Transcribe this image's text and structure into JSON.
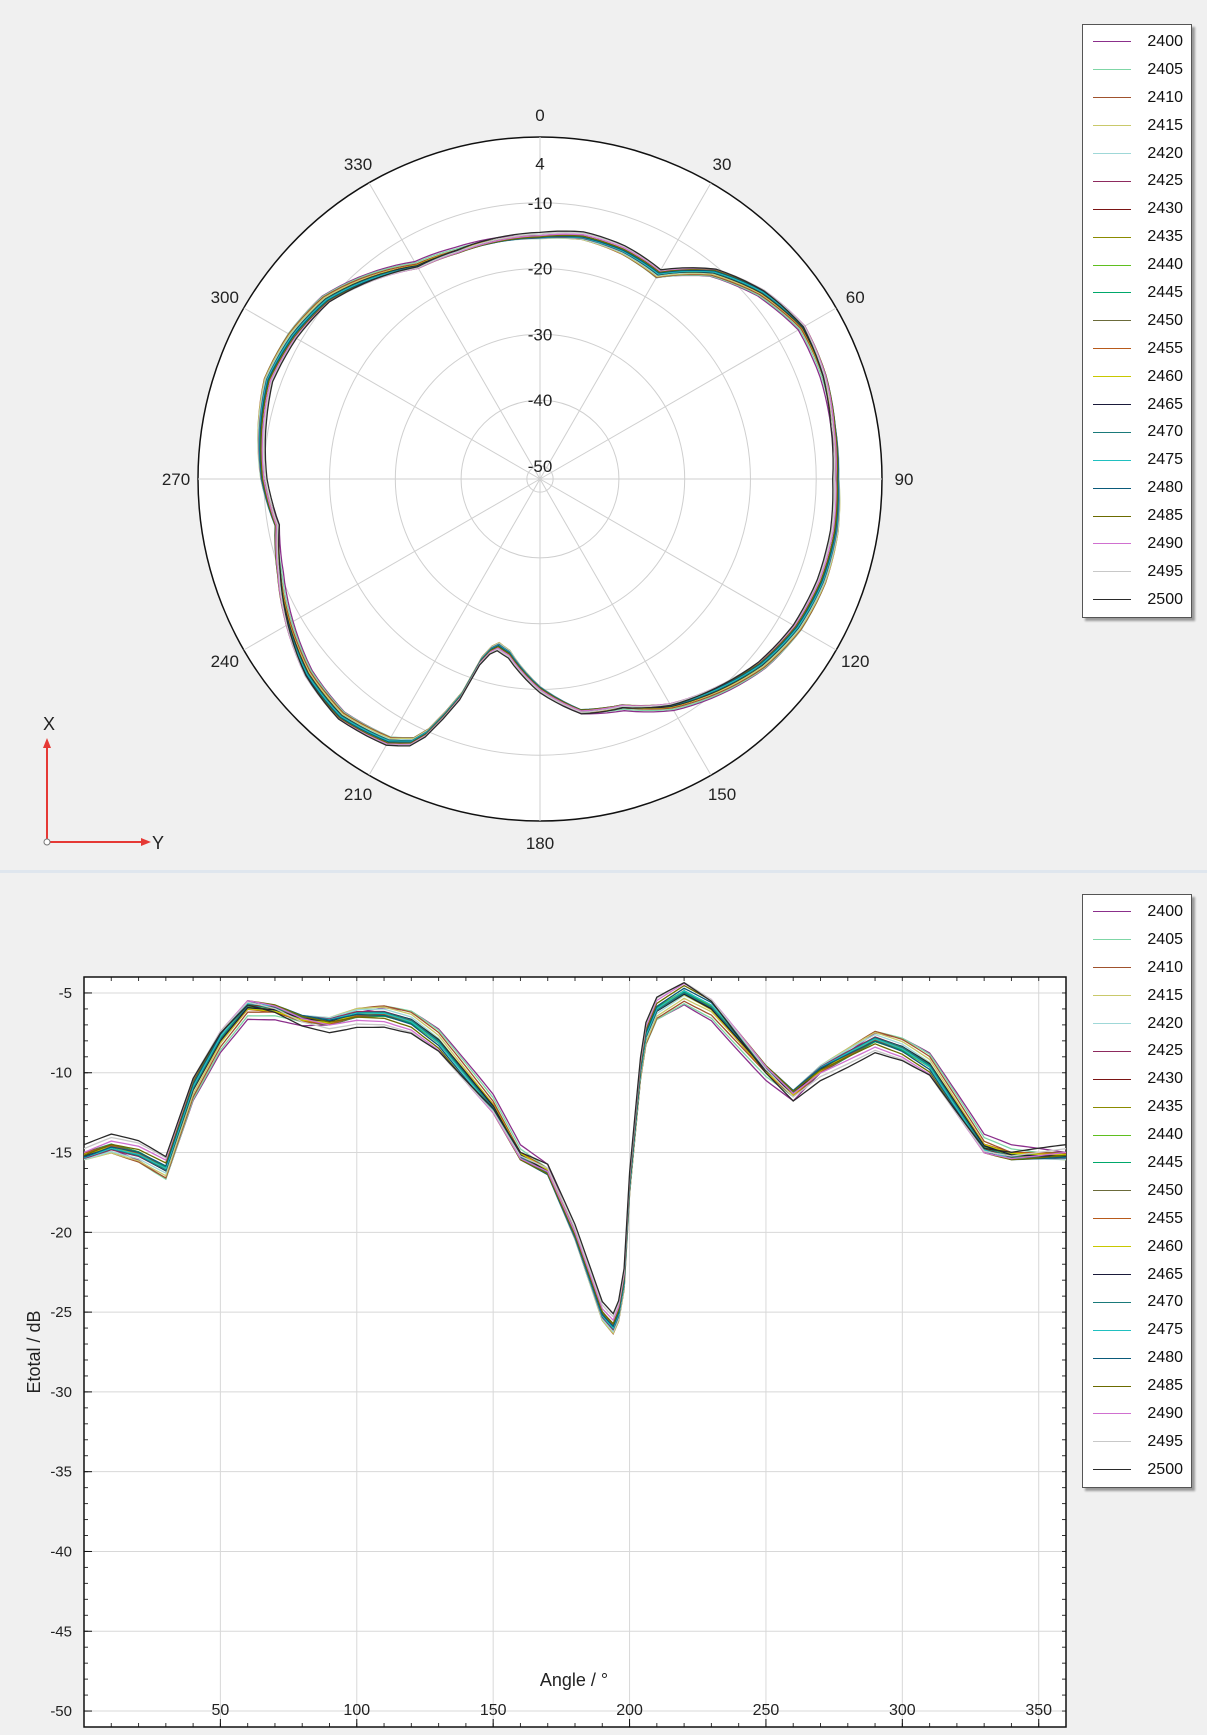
{
  "colors": {
    "2400": "#8b2f8b",
    "2405": "#7fd6a6",
    "2410": "#a0522d",
    "2415": "#c9c96a",
    "2420": "#9fd8d8",
    "2425": "#8e2a5e",
    "2430": "#7a1414",
    "2435": "#8b8b00",
    "2440": "#5fbf1f",
    "2445": "#00a86b",
    "2450": "#6b6b3a",
    "2455": "#b85a1a",
    "2460": "#c8c800",
    "2465": "#1a1a3a",
    "2470": "#1a7a7a",
    "2475": "#20c0c0",
    "2480": "#0a5a7a",
    "2485": "#6b6b00",
    "2490": "#d070d0",
    "2495": "#c8c8c8",
    "2500": "#2a2a2a"
  },
  "legend": {
    "items": [
      "2400",
      "2405",
      "2410",
      "2415",
      "2420",
      "2425",
      "2430",
      "2435",
      "2440",
      "2445",
      "2450",
      "2455",
      "2460",
      "2465",
      "2470",
      "2475",
      "2480",
      "2485",
      "2490",
      "2495",
      "2500"
    ]
  },
  "axes_indicator": {
    "x_label": "X",
    "y_label": "Y"
  },
  "chart_data": [
    {
      "type": "polar-line",
      "angle_tick_labels": [
        "0",
        "30",
        "60",
        "90",
        "120",
        "150",
        "180",
        "210",
        "240",
        "270",
        "300",
        "330"
      ],
      "radial_tick_labels": [
        "-50",
        "-40",
        "-30",
        "-20",
        "-10",
        "4"
      ],
      "radial_range": [
        -52,
        0
      ],
      "series_names": [
        "2400",
        "2405",
        "2410",
        "2415",
        "2420",
        "2425",
        "2430",
        "2435",
        "2440",
        "2445",
        "2450",
        "2455",
        "2460",
        "2465",
        "2470",
        "2475",
        "2480",
        "2485",
        "2490",
        "2495",
        "2500"
      ],
      "base_profile": {
        "angle": [
          0,
          10,
          20,
          30,
          40,
          50,
          60,
          70,
          80,
          90,
          100,
          110,
          120,
          130,
          140,
          150,
          160,
          170,
          180,
          190,
          195,
          198,
          200,
          205,
          210,
          220,
          230,
          240,
          250,
          260,
          270,
          280,
          290,
          300,
          310,
          320,
          330,
          340,
          350,
          360
        ],
        "value": [
          -15,
          -14.5,
          -15,
          -16,
          -11,
          -8,
          -6,
          -6.2,
          -6.8,
          -7,
          -6.5,
          -6.4,
          -6.8,
          -8,
          -10,
          -12,
          -15,
          -16,
          -20,
          -25,
          -26,
          -23,
          -17,
          -8,
          -6,
          -5,
          -6,
          -8,
          -10,
          -11.5,
          -10,
          -9,
          -8,
          -8.5,
          -9.5,
          -12,
          -14.5,
          -15,
          -15,
          -15
        ]
      },
      "spread_db": 1.5,
      "legend_position": "top-right"
    },
    {
      "type": "line",
      "xlabel": "Angle / °",
      "ylabel": "Etotal / dB",
      "xlim": [
        0,
        360
      ],
      "ylim": [
        -51,
        -4
      ],
      "x_ticks": [
        50,
        100,
        150,
        200,
        250,
        300,
        350
      ],
      "y_ticks": [
        -5,
        -10,
        -15,
        -20,
        -25,
        -30,
        -35,
        -40,
        -45,
        -50
      ],
      "grid": true,
      "series_names": [
        "2400",
        "2405",
        "2410",
        "2415",
        "2420",
        "2425",
        "2430",
        "2435",
        "2440",
        "2445",
        "2450",
        "2455",
        "2460",
        "2465",
        "2470",
        "2475",
        "2480",
        "2485",
        "2490",
        "2495",
        "2500"
      ],
      "base_profile": {
        "x": [
          0,
          10,
          20,
          30,
          40,
          50,
          60,
          70,
          80,
          90,
          100,
          110,
          120,
          130,
          140,
          150,
          160,
          170,
          180,
          190,
          195,
          198,
          200,
          205,
          210,
          220,
          230,
          240,
          250,
          260,
          270,
          280,
          290,
          300,
          310,
          320,
          330,
          340,
          350,
          360
        ],
        "y": [
          -15,
          -14.5,
          -15,
          -16,
          -11,
          -8,
          -6,
          -6.2,
          -6.8,
          -7,
          -6.5,
          -6.4,
          -6.8,
          -8,
          -10,
          -12,
          -15,
          -16,
          -20,
          -25,
          -26,
          -23,
          -17,
          -8,
          -6,
          -5,
          -6,
          -8,
          -10,
          -11.5,
          -10,
          -9,
          -8,
          -8.5,
          -9.5,
          -12,
          -14.5,
          -15,
          -15,
          -15
        ]
      },
      "spread_db": 1.5,
      "legend_position": "top-right"
    }
  ]
}
